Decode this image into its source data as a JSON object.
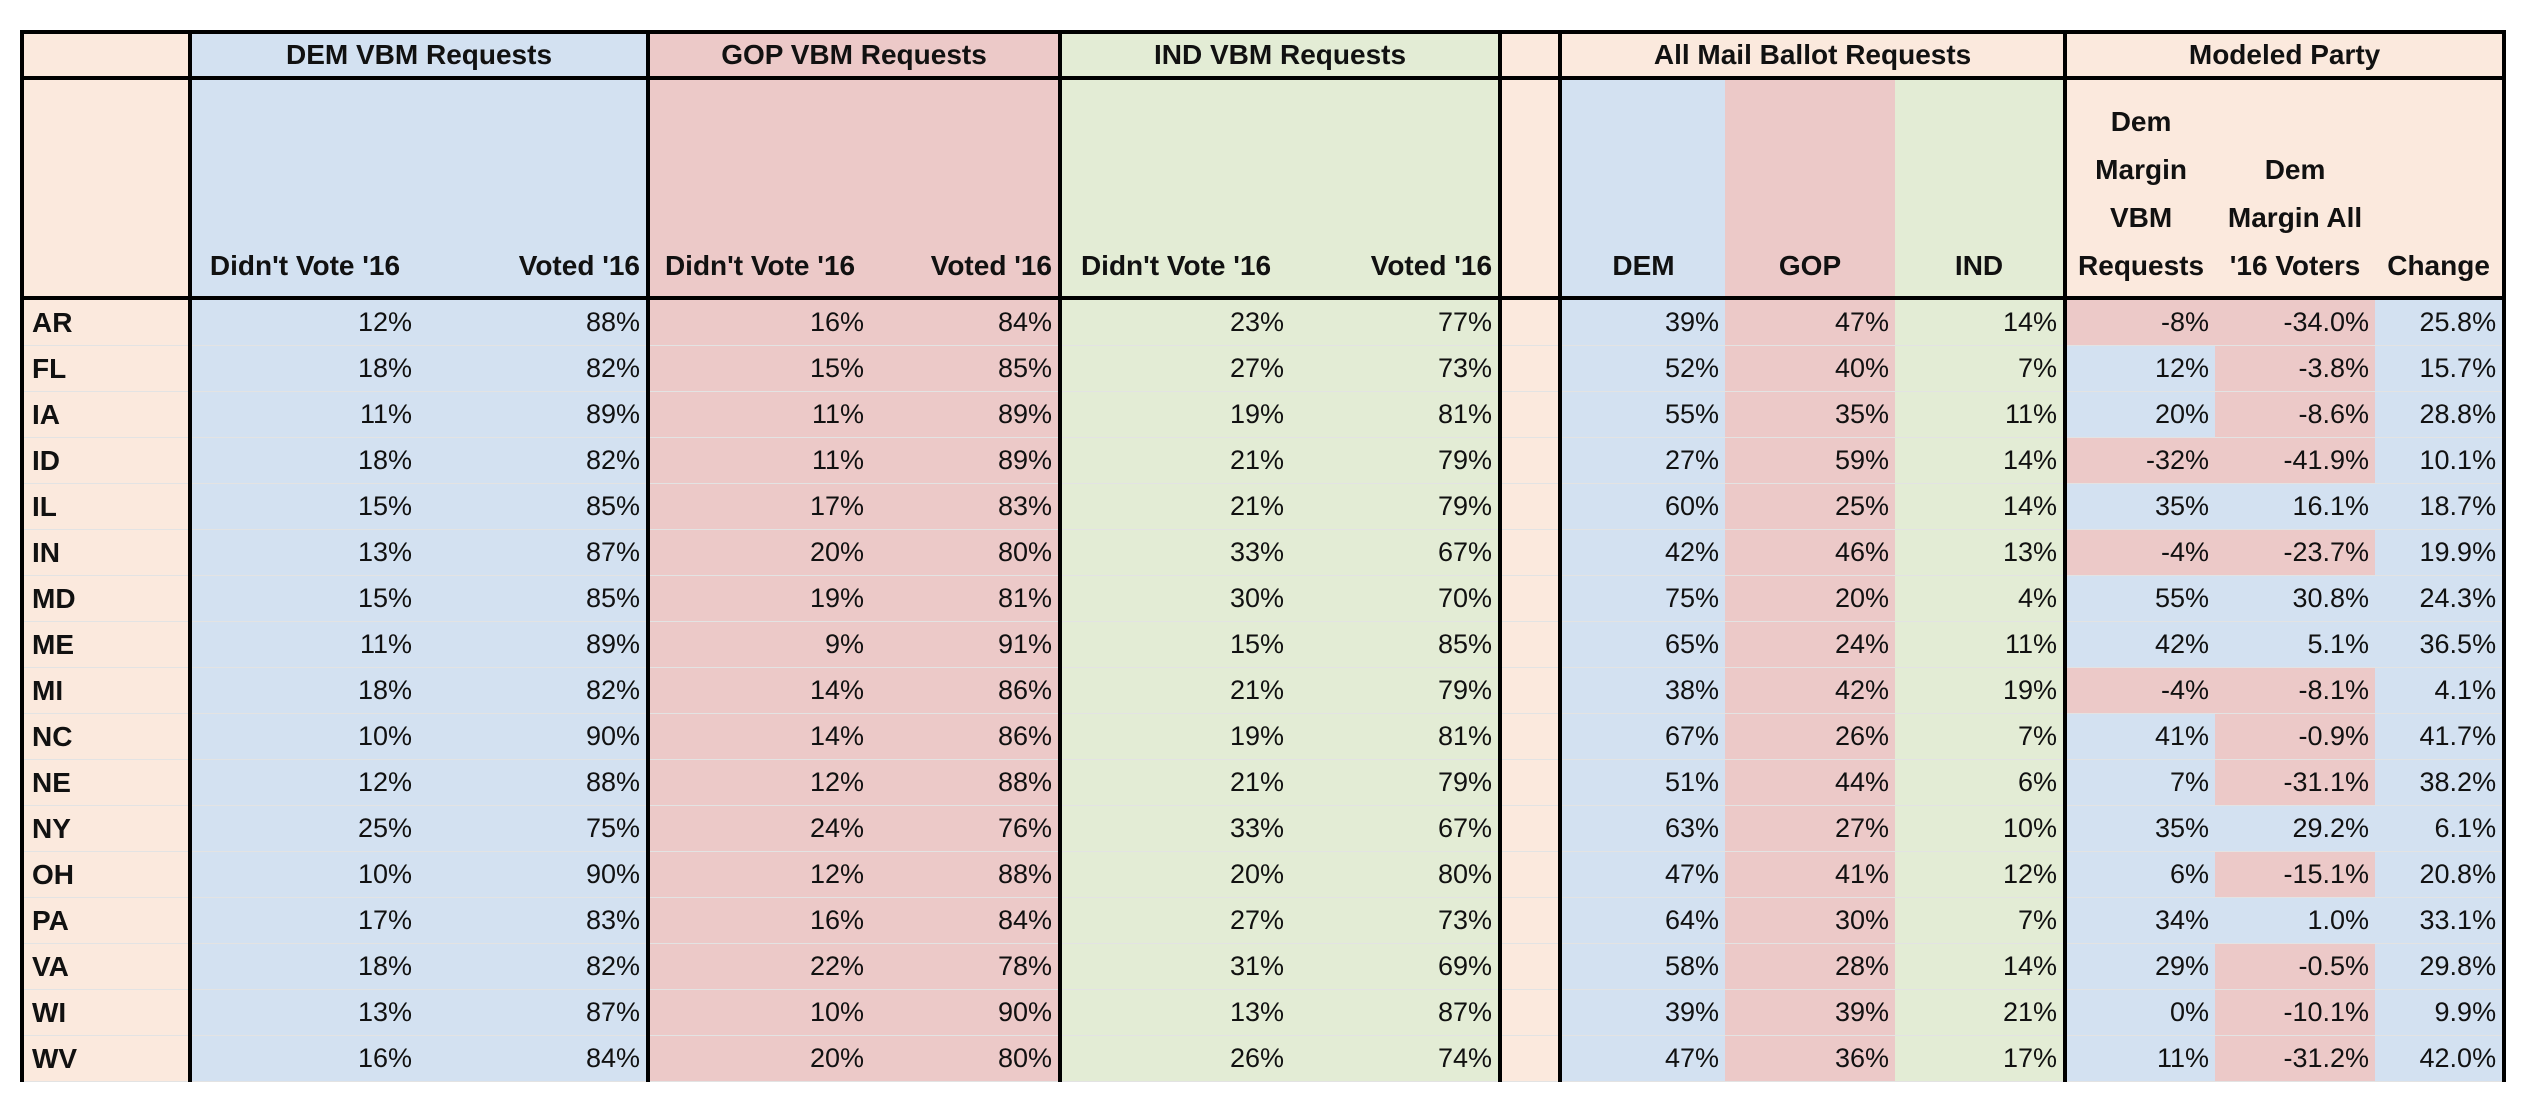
{
  "colors": {
    "peach": "#fbe9dd",
    "blue": "#d3e1f1",
    "red": "#ecc9c8",
    "green": "#e3ecd5",
    "border": "#000000"
  },
  "groups": {
    "dem": "DEM VBM Requests",
    "gop": "GOP VBM Requests",
    "ind": "IND VBM Requests",
    "all": "All Mail Ballot Requests",
    "model": "Modeled Party"
  },
  "subheaders": {
    "didnt_vote": "Didn't Vote '16",
    "voted": "Voted '16",
    "dem": "DEM",
    "gop": "GOP",
    "ind": "IND",
    "dem_margin_vbm": "Dem Margin VBM Requests",
    "dem_margin_all": "Dem Margin All '16 Voters",
    "change": "Change"
  },
  "rows": [
    {
      "state": "AR",
      "dem_dnv": "12%",
      "dem_v": "88%",
      "gop_dnv": "16%",
      "gop_v": "84%",
      "ind_dnv": "23%",
      "ind_v": "77%",
      "all_dem": "39%",
      "all_gop": "47%",
      "all_ind": "14%",
      "margin_vbm": "-8%",
      "margin_all": "-34.0%",
      "change": "25.8%"
    },
    {
      "state": "FL",
      "dem_dnv": "18%",
      "dem_v": "82%",
      "gop_dnv": "15%",
      "gop_v": "85%",
      "ind_dnv": "27%",
      "ind_v": "73%",
      "all_dem": "52%",
      "all_gop": "40%",
      "all_ind": "7%",
      "margin_vbm": "12%",
      "margin_all": "-3.8%",
      "change": "15.7%"
    },
    {
      "state": "IA",
      "dem_dnv": "11%",
      "dem_v": "89%",
      "gop_dnv": "11%",
      "gop_v": "89%",
      "ind_dnv": "19%",
      "ind_v": "81%",
      "all_dem": "55%",
      "all_gop": "35%",
      "all_ind": "11%",
      "margin_vbm": "20%",
      "margin_all": "-8.6%",
      "change": "28.8%"
    },
    {
      "state": "ID",
      "dem_dnv": "18%",
      "dem_v": "82%",
      "gop_dnv": "11%",
      "gop_v": "89%",
      "ind_dnv": "21%",
      "ind_v": "79%",
      "all_dem": "27%",
      "all_gop": "59%",
      "all_ind": "14%",
      "margin_vbm": "-32%",
      "margin_all": "-41.9%",
      "change": "10.1%"
    },
    {
      "state": "IL",
      "dem_dnv": "15%",
      "dem_v": "85%",
      "gop_dnv": "17%",
      "gop_v": "83%",
      "ind_dnv": "21%",
      "ind_v": "79%",
      "all_dem": "60%",
      "all_gop": "25%",
      "all_ind": "14%",
      "margin_vbm": "35%",
      "margin_all": "16.1%",
      "change": "18.7%"
    },
    {
      "state": "IN",
      "dem_dnv": "13%",
      "dem_v": "87%",
      "gop_dnv": "20%",
      "gop_v": "80%",
      "ind_dnv": "33%",
      "ind_v": "67%",
      "all_dem": "42%",
      "all_gop": "46%",
      "all_ind": "13%",
      "margin_vbm": "-4%",
      "margin_all": "-23.7%",
      "change": "19.9%"
    },
    {
      "state": "MD",
      "dem_dnv": "15%",
      "dem_v": "85%",
      "gop_dnv": "19%",
      "gop_v": "81%",
      "ind_dnv": "30%",
      "ind_v": "70%",
      "all_dem": "75%",
      "all_gop": "20%",
      "all_ind": "4%",
      "margin_vbm": "55%",
      "margin_all": "30.8%",
      "change": "24.3%"
    },
    {
      "state": "ME",
      "dem_dnv": "11%",
      "dem_v": "89%",
      "gop_dnv": "9%",
      "gop_v": "91%",
      "ind_dnv": "15%",
      "ind_v": "85%",
      "all_dem": "65%",
      "all_gop": "24%",
      "all_ind": "11%",
      "margin_vbm": "42%",
      "margin_all": "5.1%",
      "change": "36.5%"
    },
    {
      "state": "MI",
      "dem_dnv": "18%",
      "dem_v": "82%",
      "gop_dnv": "14%",
      "gop_v": "86%",
      "ind_dnv": "21%",
      "ind_v": "79%",
      "all_dem": "38%",
      "all_gop": "42%",
      "all_ind": "19%",
      "margin_vbm": "-4%",
      "margin_all": "-8.1%",
      "change": "4.1%"
    },
    {
      "state": "NC",
      "dem_dnv": "10%",
      "dem_v": "90%",
      "gop_dnv": "14%",
      "gop_v": "86%",
      "ind_dnv": "19%",
      "ind_v": "81%",
      "all_dem": "67%",
      "all_gop": "26%",
      "all_ind": "7%",
      "margin_vbm": "41%",
      "margin_all": "-0.9%",
      "change": "41.7%"
    },
    {
      "state": "NE",
      "dem_dnv": "12%",
      "dem_v": "88%",
      "gop_dnv": "12%",
      "gop_v": "88%",
      "ind_dnv": "21%",
      "ind_v": "79%",
      "all_dem": "51%",
      "all_gop": "44%",
      "all_ind": "6%",
      "margin_vbm": "7%",
      "margin_all": "-31.1%",
      "change": "38.2%"
    },
    {
      "state": "NY",
      "dem_dnv": "25%",
      "dem_v": "75%",
      "gop_dnv": "24%",
      "gop_v": "76%",
      "ind_dnv": "33%",
      "ind_v": "67%",
      "all_dem": "63%",
      "all_gop": "27%",
      "all_ind": "10%",
      "margin_vbm": "35%",
      "margin_all": "29.2%",
      "change": "6.1%"
    },
    {
      "state": "OH",
      "dem_dnv": "10%",
      "dem_v": "90%",
      "gop_dnv": "12%",
      "gop_v": "88%",
      "ind_dnv": "20%",
      "ind_v": "80%",
      "all_dem": "47%",
      "all_gop": "41%",
      "all_ind": "12%",
      "margin_vbm": "6%",
      "margin_all": "-15.1%",
      "change": "20.8%"
    },
    {
      "state": "PA",
      "dem_dnv": "17%",
      "dem_v": "83%",
      "gop_dnv": "16%",
      "gop_v": "84%",
      "ind_dnv": "27%",
      "ind_v": "73%",
      "all_dem": "64%",
      "all_gop": "30%",
      "all_ind": "7%",
      "margin_vbm": "34%",
      "margin_all": "1.0%",
      "change": "33.1%"
    },
    {
      "state": "VA",
      "dem_dnv": "18%",
      "dem_v": "82%",
      "gop_dnv": "22%",
      "gop_v": "78%",
      "ind_dnv": "31%",
      "ind_v": "69%",
      "all_dem": "58%",
      "all_gop": "28%",
      "all_ind": "14%",
      "margin_vbm": "29%",
      "margin_all": "-0.5%",
      "change": "29.8%"
    },
    {
      "state": "WI",
      "dem_dnv": "13%",
      "dem_v": "87%",
      "gop_dnv": "10%",
      "gop_v": "90%",
      "ind_dnv": "13%",
      "ind_v": "87%",
      "all_dem": "39%",
      "all_gop": "39%",
      "all_ind": "21%",
      "margin_vbm": "0%",
      "margin_all": "-10.1%",
      "change": "9.9%"
    },
    {
      "state": "WV",
      "dem_dnv": "16%",
      "dem_v": "84%",
      "gop_dnv": "20%",
      "gop_v": "80%",
      "ind_dnv": "26%",
      "ind_v": "74%",
      "all_dem": "47%",
      "all_gop": "36%",
      "all_ind": "17%",
      "margin_vbm": "11%",
      "margin_all": "-31.2%",
      "change": "42.0%"
    }
  ]
}
